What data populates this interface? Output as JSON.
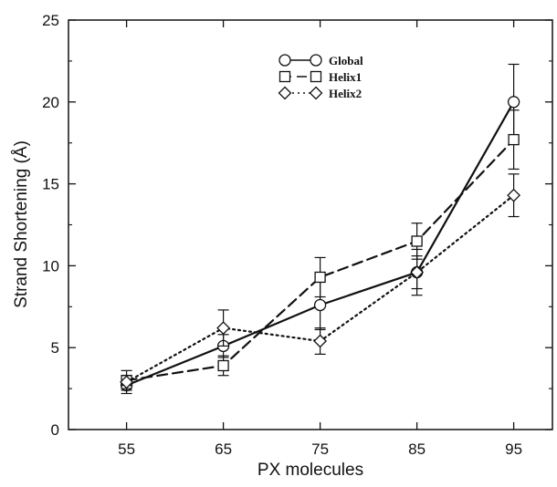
{
  "chart_data": {
    "type": "line",
    "xlabel": "PX molecules",
    "ylabel": "Strand Shortening (Å)",
    "x": [
      55,
      65,
      75,
      85,
      95
    ],
    "xlim": [
      49,
      99
    ],
    "ylim": [
      0,
      25
    ],
    "xticks": [
      "55",
      "65",
      "75",
      "85",
      "95"
    ],
    "yticks": [
      "0",
      "5",
      "10",
      "15",
      "20",
      "25"
    ],
    "legend_position": "top-center",
    "grid": false,
    "series": [
      {
        "name": "Global",
        "marker": "circle",
        "line_style": "solid",
        "values": [
          2.7,
          5.1,
          7.6,
          9.6,
          20.0
        ],
        "errors": [
          0.5,
          0.7,
          1.5,
          1.0,
          2.3
        ]
      },
      {
        "name": "Helix1",
        "marker": "square",
        "line_style": "dashed",
        "values": [
          3.0,
          3.9,
          9.3,
          11.5,
          17.7
        ],
        "errors": [
          0.6,
          0.6,
          1.2,
          1.1,
          1.8
        ]
      },
      {
        "name": "Helix2",
        "marker": "diamond",
        "line_style": "dotted",
        "values": [
          2.9,
          6.2,
          5.4,
          9.6,
          14.3
        ],
        "errors": [
          0.4,
          1.1,
          0.8,
          1.4,
          1.3
        ]
      }
    ]
  }
}
